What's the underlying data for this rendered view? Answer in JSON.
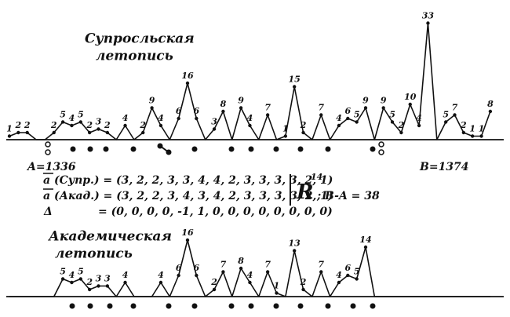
{
  "chart_data": [
    {
      "type": "line",
      "title": [
        "Супросльская",
        "летопись"
      ],
      "color": "#111111",
      "values": [
        1,
        2,
        2,
        0,
        0,
        2,
        5,
        4,
        5,
        2,
        3,
        2,
        0,
        4,
        0,
        2,
        9,
        4,
        0,
        6,
        16,
        6,
        0,
        3,
        8,
        0,
        9,
        4,
        0,
        7,
        0,
        1,
        15,
        2,
        0,
        7,
        0,
        4,
        6,
        5,
        9,
        0,
        9,
        5,
        2,
        10,
        4,
        33,
        0,
        5,
        7,
        2,
        1,
        1,
        8
      ],
      "annotations": [
        "A=1336",
        "B=1374",
        "a (Супр.) = (3, 2, 2, 3, 3, 4, 4, 2, 3, 3, 3, 3, 2, 1)",
        "a (Акад.) = (3, 2, 2, 3, 4, 3, 4, 2, 3, 3, 3, 3, 2, 1)",
        "Δ",
        "= (0, 0, 0, 0, -1, 1, 0, 0, 0, 0, 0, 0, 0, 0)",
        "R",
        "14",
        "; B-A = 38"
      ]
    },
    {
      "type": "line",
      "title": [
        "Академическая",
        "летопись"
      ],
      "color": "#111111",
      "values": [
        0,
        0,
        0,
        0,
        0,
        0,
        5,
        4,
        5,
        2,
        3,
        3,
        0,
        4,
        0,
        0,
        0,
        4,
        0,
        6,
        16,
        6,
        0,
        2,
        7,
        0,
        8,
        4,
        0,
        7,
        1,
        0,
        13,
        2,
        0,
        7,
        0,
        4,
        6,
        5,
        14,
        0,
        0,
        0,
        0,
        0,
        0,
        0,
        0,
        0,
        0,
        0,
        0,
        0,
        0
      ]
    }
  ]
}
